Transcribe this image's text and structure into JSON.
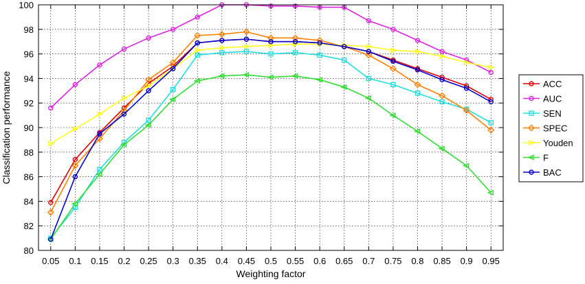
{
  "chart_data": {
    "type": "line",
    "xlabel": "Weighting factor",
    "ylabel": "Classification performance",
    "xlim": [
      0.025,
      0.975
    ],
    "ylim": [
      80,
      100
    ],
    "x": [
      0.05,
      0.1,
      0.15,
      0.2,
      0.25,
      0.3,
      0.35,
      0.4,
      0.45,
      0.5,
      0.55,
      0.6,
      0.65,
      0.7,
      0.75,
      0.8,
      0.85,
      0.9,
      0.95
    ],
    "x_tick_labels": [
      "0.05",
      "0.1",
      "0.15",
      "0.2",
      "0.25",
      "0.3",
      "0.35",
      "0.4",
      "0.45",
      "0.5",
      "0.55",
      "0.6",
      "0.65",
      "0.7",
      "0.75",
      "0.8",
      "0.85",
      "0.9",
      "0.95"
    ],
    "y_ticks": [
      80,
      82,
      84,
      86,
      88,
      90,
      92,
      94,
      96,
      98,
      100
    ],
    "y_tick_labels": [
      "80",
      "82",
      "84",
      "86",
      "88",
      "90",
      "92",
      "94",
      "96",
      "98",
      "100"
    ],
    "grid": true,
    "legend_position": "right",
    "series": [
      {
        "name": "ACC",
        "color": "#dd0000",
        "marker": "circle",
        "values": [
          83.9,
          87.4,
          89.6,
          91.6,
          93.6,
          95.0,
          96.9,
          97.1,
          97.2,
          97.0,
          97.0,
          96.9,
          96.6,
          96.2,
          95.5,
          94.8,
          94.1,
          93.4,
          92.3
        ]
      },
      {
        "name": "AUC",
        "color": "#dd22dd",
        "marker": "circle",
        "values": [
          91.6,
          93.5,
          95.1,
          96.4,
          97.3,
          98.0,
          99.0,
          100.0,
          100.0,
          99.9,
          99.9,
          99.8,
          99.8,
          98.7,
          98.0,
          97.1,
          96.2,
          95.5,
          94.5
        ]
      },
      {
        "name": "SEN",
        "color": "#22dddd",
        "marker": "square",
        "values": [
          81.0,
          83.5,
          86.6,
          88.8,
          90.6,
          93.1,
          95.9,
          96.1,
          96.2,
          96.0,
          96.1,
          95.9,
          95.5,
          94.0,
          93.5,
          92.8,
          92.1,
          91.5,
          90.4
        ]
      },
      {
        "name": "SPEC",
        "color": "#ff7f00",
        "marker": "diamond",
        "values": [
          83.1,
          86.9,
          89.1,
          91.4,
          93.9,
          95.3,
          97.5,
          97.6,
          97.8,
          97.3,
          97.3,
          97.1,
          96.6,
          95.9,
          94.8,
          93.5,
          92.6,
          91.4,
          89.8
        ]
      },
      {
        "name": "Youden",
        "color": "#ffff22",
        "marker": "triangle-right",
        "values": [
          88.7,
          89.9,
          91.1,
          92.4,
          93.4,
          94.8,
          96.3,
          96.5,
          96.6,
          96.7,
          96.8,
          96.8,
          96.7,
          96.6,
          96.3,
          96.2,
          95.8,
          95.3,
          94.9
        ]
      },
      {
        "name": "F",
        "color": "#33dd33",
        "marker": "triangle-left",
        "values": [
          80.9,
          83.8,
          86.2,
          88.6,
          90.2,
          92.3,
          93.8,
          94.2,
          94.3,
          94.1,
          94.2,
          93.9,
          93.3,
          92.4,
          91.0,
          89.7,
          88.3,
          86.9,
          84.7
        ]
      },
      {
        "name": "BAC",
        "color": "#0000cc",
        "marker": "circle",
        "values": [
          80.9,
          86.0,
          89.5,
          91.1,
          93.0,
          94.8,
          96.9,
          97.1,
          97.2,
          97.0,
          97.0,
          96.9,
          96.6,
          96.2,
          95.4,
          94.7,
          93.9,
          93.2,
          92.1
        ]
      }
    ]
  }
}
